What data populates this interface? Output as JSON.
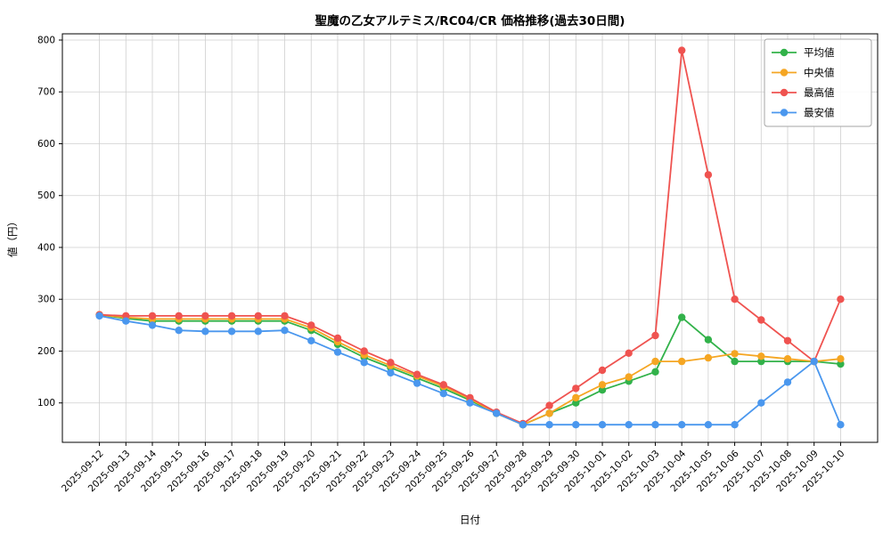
{
  "chart_data": {
    "type": "line",
    "title": "聖魔の乙女アルテミス/RC04/CR 価格推移(過去30日間)",
    "xlabel": "日付",
    "ylabel": "値（円）",
    "legend_position": "upper right",
    "grid": true,
    "ylim": [
      24,
      812
    ],
    "yticks": [
      100,
      200,
      300,
      400,
      500,
      600,
      700,
      800
    ],
    "grid_color": "#cfcfcf",
    "axis_color": "#000000",
    "x": [
      "2025-09-12",
      "2025-09-13",
      "2025-09-14",
      "2025-09-15",
      "2025-09-16",
      "2025-09-17",
      "2025-09-18",
      "2025-09-19",
      "2025-09-20",
      "2025-09-21",
      "2025-09-22",
      "2025-09-23",
      "2025-09-24",
      "2025-09-25",
      "2025-09-26",
      "2025-09-27",
      "2025-09-28",
      "2025-09-29",
      "2025-09-30",
      "2025-10-01",
      "2025-10-02",
      "2025-10-03",
      "2025-10-04",
      "2025-10-05",
      "2025-10-06",
      "2025-10-07",
      "2025-10-08",
      "2025-10-09",
      "2025-10-10"
    ],
    "series": [
      {
        "name": "平均値",
        "color": "#32b24a",
        "values": [
          270,
          263,
          258,
          258,
          258,
          258,
          258,
          258,
          240,
          213,
          188,
          168,
          148,
          128,
          105,
          80,
          58,
          80,
          100,
          125,
          142,
          160,
          265,
          222,
          180,
          180,
          180,
          180,
          175
        ]
      },
      {
        "name": "中央値",
        "color": "#f5a623",
        "values": [
          270,
          265,
          262,
          262,
          262,
          262,
          262,
          262,
          245,
          218,
          193,
          172,
          152,
          132,
          108,
          80,
          58,
          80,
          110,
          135,
          150,
          180,
          180,
          187,
          195,
          190,
          185,
          180,
          185
        ]
      },
      {
        "name": "最高値",
        "color": "#ef5350",
        "values": [
          270,
          268,
          268,
          268,
          268,
          268,
          268,
          268,
          250,
          225,
          200,
          178,
          155,
          135,
          110,
          82,
          60,
          95,
          128,
          163,
          196,
          230,
          780,
          540,
          300,
          260,
          220,
          180,
          300
        ]
      },
      {
        "name": "最安値",
        "color": "#4a97ee",
        "values": [
          268,
          258,
          250,
          240,
          238,
          238,
          238,
          240,
          220,
          198,
          178,
          158,
          138,
          118,
          100,
          80,
          58,
          58,
          58,
          58,
          58,
          58,
          58,
          58,
          58,
          100,
          140,
          180,
          58
        ]
      }
    ]
  }
}
